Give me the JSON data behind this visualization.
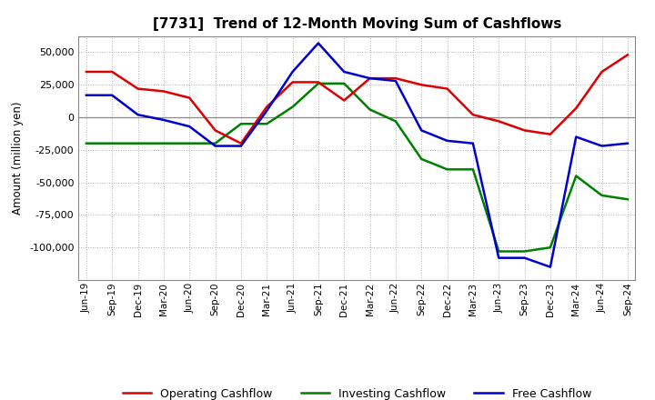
{
  "title": "[7731]  Trend of 12-Month Moving Sum of Cashflows",
  "ylabel": "Amount (million yen)",
  "background_color": "#ffffff",
  "grid_color": "#b0b0b0",
  "x_labels": [
    "Jun-19",
    "Sep-19",
    "Dec-19",
    "Mar-20",
    "Jun-20",
    "Sep-20",
    "Dec-20",
    "Mar-21",
    "Jun-21",
    "Sep-21",
    "Dec-21",
    "Mar-22",
    "Jun-22",
    "Sep-22",
    "Dec-22",
    "Mar-23",
    "Jun-23",
    "Sep-23",
    "Dec-23",
    "Mar-24",
    "Jun-24",
    "Sep-24"
  ],
  "operating": [
    35000,
    35000,
    22000,
    20000,
    15000,
    -10000,
    -20000,
    8000,
    27000,
    27000,
    13000,
    30000,
    30000,
    25000,
    22000,
    2000,
    -3000,
    -10000,
    -13000,
    7000,
    35000,
    48000
  ],
  "investing": [
    -20000,
    -20000,
    -20000,
    -20000,
    -20000,
    -20000,
    -5000,
    -5000,
    8000,
    26000,
    26000,
    6000,
    -3000,
    -32000,
    -40000,
    -40000,
    -103000,
    -103000,
    -100000,
    -45000,
    -60000,
    -63000
  ],
  "free": [
    17000,
    17000,
    2000,
    -2000,
    -7000,
    -22000,
    -22000,
    5000,
    35000,
    57000,
    35000,
    30000,
    28000,
    -10000,
    -18000,
    -20000,
    -108000,
    -108000,
    -115000,
    -15000,
    -22000,
    -20000
  ],
  "op_color": "#dd0000",
  "inv_color": "#008000",
  "free_color": "#0000cc",
  "ylim": [
    -125000,
    62500
  ],
  "yticks": [
    -100000,
    -75000,
    -50000,
    -25000,
    0,
    25000,
    50000
  ]
}
